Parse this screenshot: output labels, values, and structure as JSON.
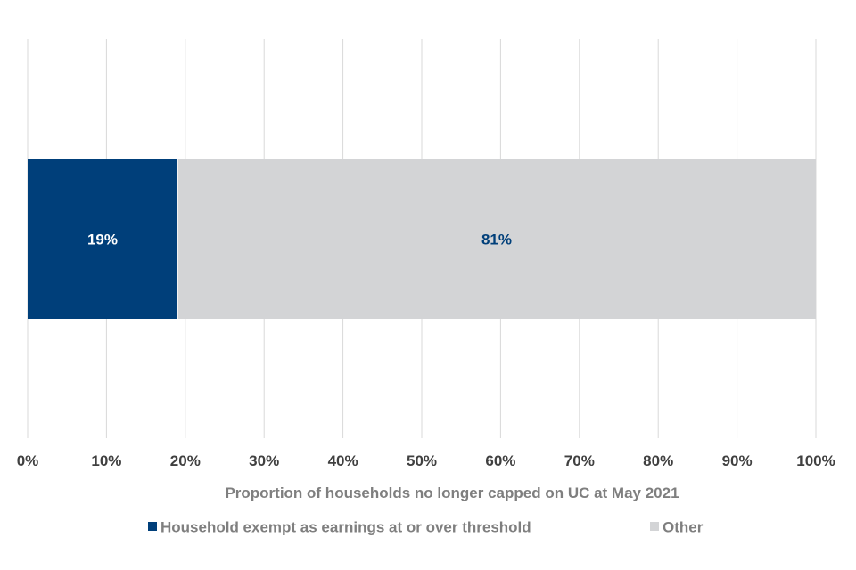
{
  "chart_data": {
    "type": "bar",
    "orientation": "horizontal",
    "stacked": true,
    "title": "",
    "xlabel": "Proportion of households no longer capped on UC at May 2021",
    "ylabel": "",
    "xlim": [
      0,
      100
    ],
    "x_ticks": [
      "0%",
      "10%",
      "20%",
      "30%",
      "40%",
      "50%",
      "60%",
      "70%",
      "80%",
      "90%",
      "100%"
    ],
    "categories": [
      ""
    ],
    "series": [
      {
        "name": "Household exempt as earnings at or over threshold",
        "values": [
          19
        ],
        "label": "19%",
        "color": "#003f7a",
        "label_color": "#ffffff"
      },
      {
        "name": "Other",
        "values": [
          81
        ],
        "label": "81%",
        "color": "#d3d4d6",
        "label_color": "#003f7a"
      }
    ],
    "grid": "vertical",
    "legend_position": "bottom"
  }
}
